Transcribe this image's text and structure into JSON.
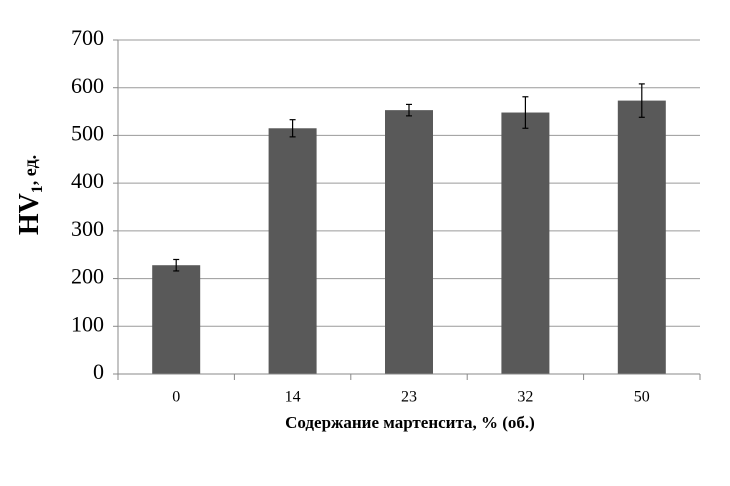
{
  "chart_data": {
    "type": "bar",
    "xlabel": "Содержание мартенсита, % (об.)",
    "ylabel": {
      "main": "HV",
      "sub": "1",
      "unit": ", ед."
    },
    "categories": [
      "0",
      "14",
      "23",
      "32",
      "50"
    ],
    "values": [
      228,
      515,
      553,
      548,
      573
    ],
    "errors": [
      12,
      18,
      12,
      33,
      35
    ],
    "color": "#595959",
    "ylim": [
      0,
      700
    ],
    "yticks": [
      0,
      100,
      200,
      300,
      400,
      500,
      600,
      700
    ],
    "grid": true
  }
}
